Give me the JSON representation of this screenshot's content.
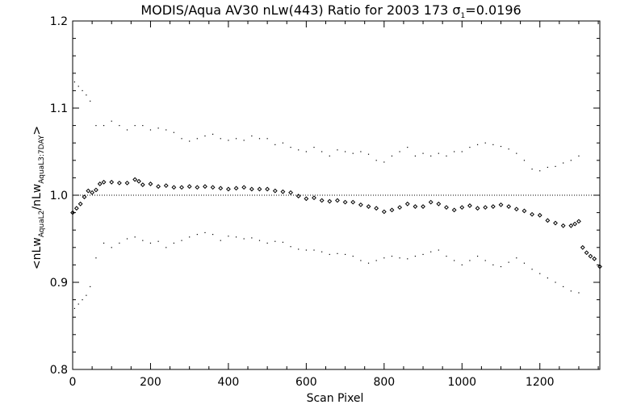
{
  "chart_data": {
    "type": "scatter",
    "title_prefix": "MODIS/Aqua AV30 nLw(443) Ratio for 2003 173 ",
    "title_sigma": "σ",
    "title_sigma_sub": "1",
    "title_suffix": "=0.0196",
    "xlabel": "Scan Pixel",
    "ylabel_parts": {
      "open": "<nLw",
      "sub1": "AquaL2",
      "mid": "/nLw",
      "sub2": "AquaL3:7DAY",
      "close": ">"
    },
    "xlim": [
      0,
      1354
    ],
    "ylim": [
      0.8,
      1.2
    ],
    "x_ticks": [
      0,
      200,
      400,
      600,
      800,
      1000,
      1200
    ],
    "x_tick_labels": [
      "0",
      "200",
      "400",
      "600",
      "800",
      "1000",
      "1200"
    ],
    "y_ticks": [
      0.8,
      0.9,
      1.0,
      1.1,
      1.2
    ],
    "y_tick_labels": [
      "0.8",
      "0.9",
      "1.0",
      "1.1",
      "1.2"
    ],
    "reference_line": 1.0,
    "grid": false,
    "series": [
      {
        "role": "mean ratio",
        "marker": "diamond",
        "x": [
          0,
          10,
          20,
          30,
          40,
          50,
          60,
          70,
          80,
          100,
          120,
          140,
          160,
          170,
          180,
          200,
          220,
          240,
          260,
          280,
          300,
          320,
          340,
          360,
          380,
          400,
          420,
          440,
          460,
          480,
          500,
          520,
          540,
          560,
          580,
          600,
          620,
          640,
          660,
          680,
          700,
          720,
          740,
          760,
          780,
          800,
          820,
          840,
          860,
          880,
          900,
          920,
          940,
          960,
          980,
          1000,
          1020,
          1040,
          1060,
          1080,
          1100,
          1120,
          1140,
          1160,
          1180,
          1200,
          1220,
          1240,
          1260,
          1280,
          1290,
          1300,
          1310,
          1320,
          1330,
          1340,
          1354
        ],
        "y": [
          0.98,
          0.985,
          0.99,
          0.998,
          1.005,
          1.003,
          1.006,
          1.013,
          1.015,
          1.015,
          1.014,
          1.014,
          1.018,
          1.016,
          1.012,
          1.013,
          1.01,
          1.011,
          1.009,
          1.009,
          1.01,
          1.009,
          1.01,
          1.009,
          1.008,
          1.007,
          1.008,
          1.009,
          1.007,
          1.007,
          1.007,
          1.005,
          1.004,
          1.003,
          0.999,
          0.996,
          0.997,
          0.994,
          0.993,
          0.994,
          0.992,
          0.992,
          0.989,
          0.987,
          0.985,
          0.981,
          0.983,
          0.986,
          0.99,
          0.987,
          0.987,
          0.992,
          0.99,
          0.986,
          0.983,
          0.986,
          0.988,
          0.985,
          0.986,
          0.987,
          0.989,
          0.987,
          0.984,
          0.982,
          0.978,
          0.977,
          0.971,
          0.968,
          0.965,
          0.965,
          0.967,
          0.97,
          0.94,
          0.934,
          0.93,
          0.927,
          0.918
        ]
      },
      {
        "role": "upper bound",
        "marker": "dot",
        "x": [
          5,
          15,
          25,
          35,
          45,
          60,
          80,
          100,
          120,
          140,
          160,
          180,
          200,
          220,
          240,
          260,
          280,
          300,
          320,
          340,
          360,
          380,
          400,
          420,
          440,
          460,
          480,
          500,
          520,
          540,
          560,
          580,
          600,
          620,
          640,
          660,
          680,
          700,
          720,
          740,
          760,
          780,
          800,
          820,
          840,
          860,
          880,
          900,
          920,
          940,
          960,
          980,
          1000,
          1020,
          1040,
          1060,
          1080,
          1100,
          1120,
          1140,
          1160,
          1180,
          1200,
          1220,
          1240,
          1260,
          1280,
          1300
        ],
        "y": [
          1.13,
          1.125,
          1.12,
          1.115,
          1.108,
          1.08,
          1.08,
          1.085,
          1.08,
          1.075,
          1.08,
          1.08,
          1.075,
          1.077,
          1.075,
          1.072,
          1.065,
          1.062,
          1.065,
          1.068,
          1.07,
          1.065,
          1.063,
          1.065,
          1.063,
          1.068,
          1.065,
          1.065,
          1.058,
          1.06,
          1.055,
          1.052,
          1.05,
          1.055,
          1.05,
          1.045,
          1.052,
          1.05,
          1.048,
          1.05,
          1.047,
          1.04,
          1.038,
          1.045,
          1.05,
          1.055,
          1.045,
          1.048,
          1.045,
          1.048,
          1.045,
          1.05,
          1.05,
          1.055,
          1.058,
          1.06,
          1.058,
          1.056,
          1.053,
          1.048,
          1.04,
          1.03,
          1.028,
          1.032,
          1.033,
          1.037,
          1.04,
          1.045
        ]
      },
      {
        "role": "lower bound",
        "marker": "dot",
        "x": [
          5,
          15,
          25,
          35,
          45,
          60,
          80,
          100,
          120,
          140,
          160,
          180,
          200,
          220,
          240,
          260,
          280,
          300,
          320,
          340,
          360,
          380,
          400,
          420,
          440,
          460,
          480,
          500,
          520,
          540,
          560,
          580,
          600,
          620,
          640,
          660,
          680,
          700,
          720,
          740,
          760,
          780,
          800,
          820,
          840,
          860,
          880,
          900,
          920,
          940,
          960,
          980,
          1000,
          1020,
          1040,
          1060,
          1080,
          1100,
          1120,
          1140,
          1160,
          1180,
          1200,
          1220,
          1240,
          1260,
          1280,
          1300
        ],
        "y": [
          0.87,
          0.875,
          0.88,
          0.885,
          0.895,
          0.928,
          0.945,
          0.94,
          0.945,
          0.95,
          0.952,
          0.948,
          0.945,
          0.947,
          0.94,
          0.945,
          0.948,
          0.952,
          0.955,
          0.957,
          0.955,
          0.948,
          0.953,
          0.952,
          0.95,
          0.951,
          0.948,
          0.945,
          0.947,
          0.946,
          0.941,
          0.938,
          0.937,
          0.937,
          0.935,
          0.932,
          0.933,
          0.932,
          0.93,
          0.925,
          0.922,
          0.925,
          0.928,
          0.93,
          0.928,
          0.927,
          0.93,
          0.932,
          0.935,
          0.937,
          0.93,
          0.925,
          0.92,
          0.925,
          0.93,
          0.925,
          0.92,
          0.918,
          0.923,
          0.928,
          0.922,
          0.915,
          0.91,
          0.905,
          0.9,
          0.895,
          0.89,
          0.888
        ]
      }
    ]
  }
}
